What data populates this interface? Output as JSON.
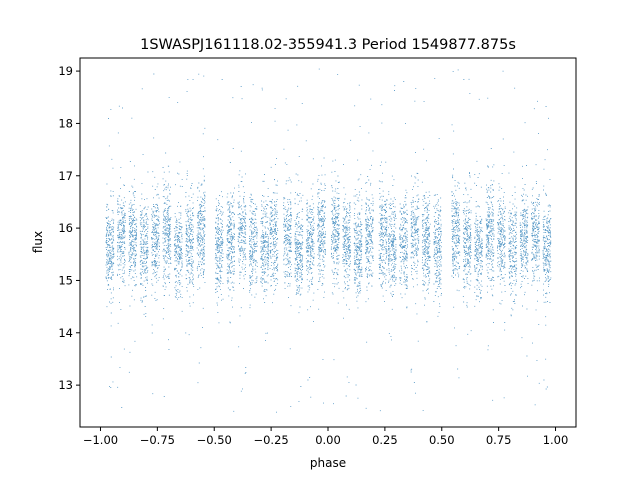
{
  "chart_data": {
    "type": "scatter",
    "title": "1SWASPJ161118.02-355941.3 Period 1549877.875s",
    "xlabel": "phase",
    "ylabel": "flux",
    "xlim": [
      -1.09,
      1.09
    ],
    "ylim": [
      12.2,
      19.25
    ],
    "x_ticks": [
      -1.0,
      -0.75,
      -0.5,
      -0.25,
      0.0,
      0.25,
      0.5,
      0.75,
      1.0
    ],
    "x_tick_labels": [
      "−1.00",
      "−0.75",
      "−0.50",
      "−0.25",
      "0.00",
      "0.25",
      "0.50",
      "0.75",
      "1.00"
    ],
    "y_ticks": [
      13,
      14,
      15,
      16,
      17,
      18,
      19
    ],
    "y_tick_labels": [
      "13",
      "14",
      "15",
      "16",
      "17",
      "18",
      "19"
    ],
    "grid": false,
    "legend": "none",
    "marker_color": "#1f77b4",
    "phase_range": [
      -1.0,
      1.0
    ],
    "symmetric_about_zero": true,
    "point_count": 9000,
    "flux_median": 15.75,
    "flux_main_band": [
      14.3,
      17.2
    ],
    "flux_outlier_range": [
      12.5,
      19.0
    ],
    "observing_clusters_phase": [
      0.03,
      0.08,
      0.13,
      0.18,
      0.24,
      0.28,
      0.33,
      0.38,
      0.43,
      0.48,
      0.56,
      0.61,
      0.66,
      0.71,
      0.76,
      0.81,
      0.86,
      0.91,
      0.96
    ]
  }
}
